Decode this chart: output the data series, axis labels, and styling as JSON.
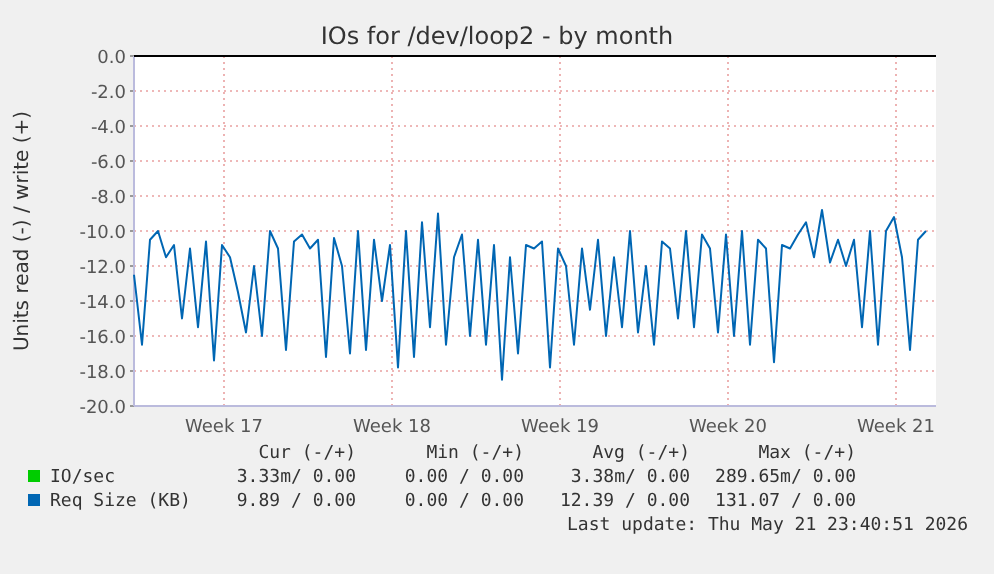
{
  "chart_data": {
    "type": "line",
    "title": "IOs for /dev/loop2 - by month",
    "ylabel": "Units read (-) / write (+)",
    "x": [
      "2026-04-19T18:00",
      "2026-04-20T02:00",
      "2026-04-20T10:00",
      "2026-04-20T18:00",
      "2026-04-21T02:00",
      "2026-04-21T10:00",
      "2026-04-21T18:00",
      "2026-04-22T02:00",
      "2026-04-22T10:00",
      "2026-04-22T18:00",
      "2026-04-23T02:00",
      "2026-04-23T10:00",
      "2026-04-23T18:00",
      "2026-04-24T02:00",
      "2026-04-24T10:00",
      "2026-04-24T18:00",
      "2026-04-25T02:00",
      "2026-04-25T10:00",
      "2026-04-25T18:00",
      "2026-04-26T02:00",
      "2026-04-26T10:00",
      "2026-04-26T18:00",
      "2026-04-27T02:00",
      "2026-04-27T10:00",
      "2026-04-27T18:00",
      "2026-04-28T02:00",
      "2026-04-28T10:00",
      "2026-04-28T18:00",
      "2026-04-29T02:00",
      "2026-04-29T10:00",
      "2026-04-29T18:00",
      "2026-04-30T02:00",
      "2026-04-30T10:00",
      "2026-04-30T18:00",
      "2026-05-01T02:00",
      "2026-05-01T10:00",
      "2026-05-01T18:00",
      "2026-05-02T02:00",
      "2026-05-02T10:00",
      "2026-05-02T18:00",
      "2026-05-03T02:00",
      "2026-05-03T10:00",
      "2026-05-03T18:00",
      "2026-05-04T02:00",
      "2026-05-04T10:00",
      "2026-05-04T18:00",
      "2026-05-05T02:00",
      "2026-05-05T10:00",
      "2026-05-05T18:00",
      "2026-05-06T02:00",
      "2026-05-06T10:00",
      "2026-05-06T18:00",
      "2026-05-07T02:00",
      "2026-05-07T10:00",
      "2026-05-07T18:00",
      "2026-05-08T02:00",
      "2026-05-08T10:00",
      "2026-05-08T18:00",
      "2026-05-09T02:00",
      "2026-05-09T10:00",
      "2026-05-09T18:00",
      "2026-05-10T02:00",
      "2026-05-10T10:00",
      "2026-05-10T18:00",
      "2026-05-11T02:00",
      "2026-05-11T10:00",
      "2026-05-11T18:00",
      "2026-05-12T02:00",
      "2026-05-12T10:00",
      "2026-05-12T18:00",
      "2026-05-13T02:00",
      "2026-05-13T10:00",
      "2026-05-13T18:00",
      "2026-05-14T02:00",
      "2026-05-14T10:00",
      "2026-05-14T18:00",
      "2026-05-15T02:00",
      "2026-05-15T10:00",
      "2026-05-15T18:00",
      "2026-05-16T02:00",
      "2026-05-16T10:00",
      "2026-05-16T18:00",
      "2026-05-17T02:00",
      "2026-05-17T10:00",
      "2026-05-17T18:00",
      "2026-05-18T02:00",
      "2026-05-18T10:00",
      "2026-05-18T18:00",
      "2026-05-19T02:00",
      "2026-05-19T10:00",
      "2026-05-19T18:00",
      "2026-05-20T02:00",
      "2026-05-20T10:00",
      "2026-05-20T18:00",
      "2026-05-21T02:00",
      "2026-05-21T10:00",
      "2026-05-21T18:00",
      "2026-05-22T02:00",
      "2026-05-22T10:00",
      "2026-05-22T18:00"
    ],
    "series": [
      {
        "name": "IO/sec",
        "color": "#00cc00",
        "values": [
          null,
          null,
          null,
          null,
          null,
          null,
          null,
          null,
          null,
          null,
          null,
          null,
          null,
          null,
          null,
          null,
          null,
          null,
          null,
          null,
          null,
          null,
          null,
          null,
          null,
          null,
          null,
          null,
          null,
          null,
          null,
          null,
          null,
          null,
          null,
          null,
          null,
          null,
          null,
          null,
          null,
          null,
          null,
          null,
          null,
          null,
          null,
          null,
          null,
          null,
          null,
          null,
          null,
          null,
          null,
          null,
          null,
          null,
          null,
          null,
          null,
          null,
          null,
          null,
          null,
          null,
          null,
          null,
          null,
          null,
          null,
          null,
          null,
          null,
          null,
          null,
          null,
          null,
          null,
          null,
          null,
          null,
          null,
          null,
          null,
          null,
          null,
          null,
          null,
          null,
          null,
          null,
          null,
          null,
          null,
          null,
          null,
          null,
          null,
          null
        ]
      },
      {
        "name": "Req Size (KB)",
        "color": "#0066b3",
        "values": [
          -12.5,
          -16.5,
          -10.5,
          -10.0,
          -11.5,
          -10.8,
          -15.0,
          -11.0,
          -15.5,
          -10.6,
          -17.4,
          -10.8,
          -11.5,
          -13.5,
          -15.8,
          -12.0,
          -16.0,
          -10.0,
          -11.0,
          -16.8,
          -10.6,
          -10.2,
          -11.0,
          -10.5,
          -17.2,
          -10.4,
          -12.0,
          -17.0,
          -10.0,
          -16.8,
          -10.5,
          -14.0,
          -10.8,
          -17.8,
          -10.0,
          -17.2,
          -9.5,
          -15.5,
          -9.0,
          -16.5,
          -11.5,
          -10.2,
          -16.0,
          -10.5,
          -16.5,
          -10.8,
          -18.5,
          -11.5,
          -17.0,
          -10.8,
          -11.0,
          -10.6,
          -17.8,
          -11.0,
          -12.0,
          -16.5,
          -11.0,
          -14.5,
          -10.5,
          -16.0,
          -11.5,
          -15.5,
          -10.0,
          -15.8,
          -12.0,
          -16.5,
          -10.6,
          -11.0,
          -15.0,
          -10.0,
          -15.5,
          -10.2,
          -11.0,
          -15.8,
          -10.2,
          -16.0,
          -10.0,
          -16.5,
          -10.5,
          -11.0,
          -17.5,
          -10.8,
          -11.0,
          -10.2,
          -9.5,
          -11.5,
          -8.8,
          -11.8,
          -10.5,
          -12.0,
          -10.5,
          -15.5,
          -10.0,
          -16.5,
          -10.0,
          -9.2,
          -11.5,
          -16.8,
          -10.5,
          -10.0
        ]
      }
    ],
    "xlim": [
      "2026-04-19T18:00",
      "2026-05-23T04:00"
    ],
    "xticks": [
      {
        "value": "2026-04-23T12:00",
        "label": "Week 17"
      },
      {
        "value": "2026-04-30T12:00",
        "label": "Week 18"
      },
      {
        "value": "2026-05-07T12:00",
        "label": "Week 19"
      },
      {
        "value": "2026-05-14T12:00",
        "label": "Week 20"
      },
      {
        "value": "2026-05-21T12:00",
        "label": "Week 21"
      }
    ],
    "ylim": [
      -20,
      0
    ],
    "yticks": [
      {
        "value": 0,
        "label": "0.0"
      },
      {
        "value": -2,
        "label": "-2.0"
      },
      {
        "value": -4,
        "label": "-4.0"
      },
      {
        "value": -6,
        "label": "-6.0"
      },
      {
        "value": -8,
        "label": "-8.0"
      },
      {
        "value": -10,
        "label": "-10.0"
      },
      {
        "value": -12,
        "label": "-12.0"
      },
      {
        "value": -14,
        "label": "-14.0"
      },
      {
        "value": -16,
        "label": "-16.0"
      },
      {
        "value": -18,
        "label": "-18.0"
      },
      {
        "value": -20,
        "label": "-20.0"
      }
    ],
    "ref_lines": [
      {
        "axis": "y",
        "value": 0,
        "color": "#000000"
      }
    ],
    "grid": true,
    "legend": "bottom left",
    "annotations": [
      "Cur (-/+)",
      "Min (-/+)",
      "Avg (-/+)",
      "Max (-/+)",
      "3.33m/ 0.00",
      "0.00 / 0.00",
      "3.38m/ 0.00",
      "289.65m/ 0.00",
      "9.89 / 0.00",
      "0.00 / 0.00",
      "12.39 / 0.00",
      "131.07 / 0.00",
      "Last update: Thu May 21 23:40:51 2026"
    ]
  }
}
